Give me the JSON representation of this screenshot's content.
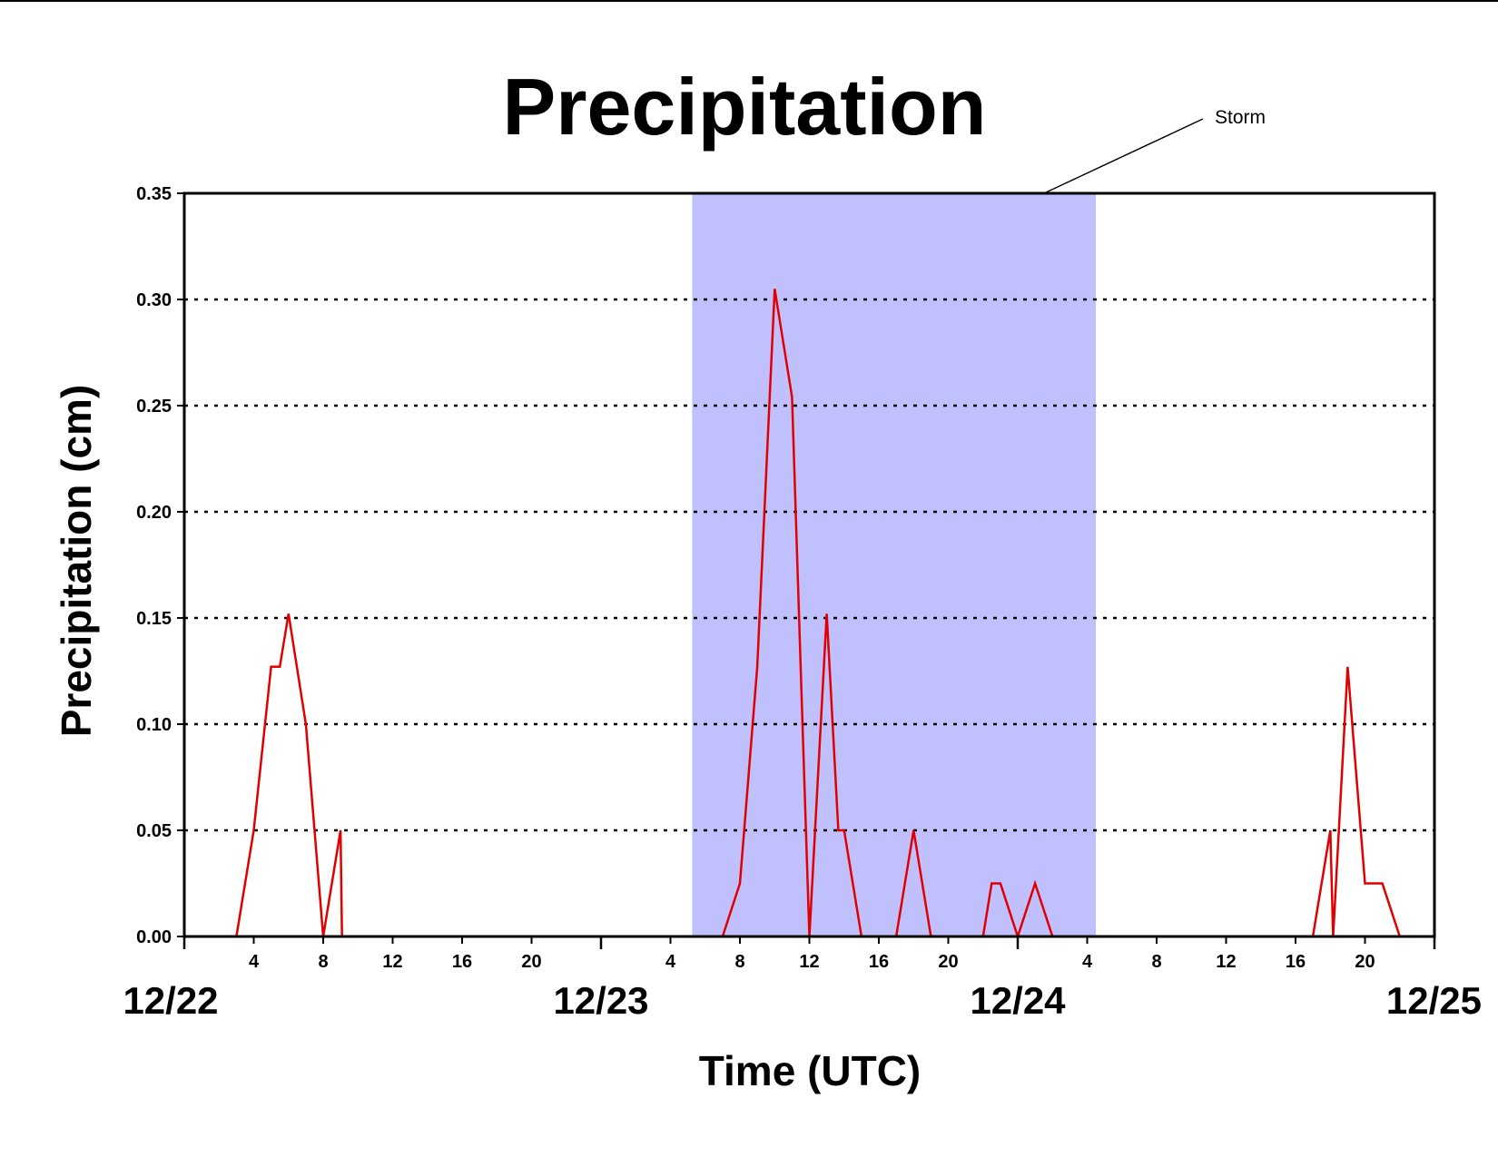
{
  "chart_data": {
    "type": "line",
    "title": "Precipitation",
    "xlabel": "Time (UTC)",
    "ylabel": "Precipitation (cm)",
    "x_unit": "hour",
    "xlim": [
      "12/22 00:00",
      "12/25 00:00"
    ],
    "ylim": [
      0,
      0.35
    ],
    "y_ticks": [
      "0.00",
      "0.05",
      "0.10",
      "0.15",
      "0.20",
      "0.25",
      "0.30",
      "0.35"
    ],
    "hour_tick_labels": [
      "4",
      "8",
      "12",
      "16",
      "20"
    ],
    "day_labels": [
      "12/22",
      "12/23",
      "12/24",
      "12/25"
    ],
    "grid": "horizontal dotted",
    "colors": {
      "line": "#e00000",
      "band": "#c0c0ff",
      "grid": "#000000",
      "axis": "#000000"
    },
    "annotation": {
      "text": "Storm",
      "band": [
        "12/23 05:15",
        "12/24 04:30"
      ]
    },
    "series": [
      {
        "points": [
          [
            "12/22 00:00",
            0
          ],
          [
            "12/22 03:00",
            0
          ],
          [
            "12/22 04:00",
            0.05
          ],
          [
            "12/22 05:00",
            0.127
          ],
          [
            "12/22 05:30",
            0.127
          ],
          [
            "12/22 06:00",
            0.152
          ],
          [
            "12/22 07:00",
            0.1
          ],
          [
            "12/22 08:00",
            0
          ],
          [
            "12/22 09:00",
            0.05
          ],
          [
            "12/22 09:05",
            0
          ],
          [
            "12/23 07:00",
            0
          ],
          [
            "12/23 08:00",
            0.025
          ],
          [
            "12/23 09:00",
            0.127
          ],
          [
            "12/23 10:00",
            0.305
          ],
          [
            "12/23 11:00",
            0.254
          ],
          [
            "12/23 11:30",
            0.127
          ],
          [
            "12/23 12:00",
            0
          ],
          [
            "12/23 13:00",
            0.152
          ],
          [
            "12/23 13:40",
            0.05
          ],
          [
            "12/23 14:00",
            0.05
          ],
          [
            "12/23 15:00",
            0
          ],
          [
            "12/23 17:00",
            0
          ],
          [
            "12/23 18:00",
            0.05
          ],
          [
            "12/23 19:00",
            0
          ],
          [
            "12/23 22:00",
            0
          ],
          [
            "12/23 22:30",
            0.025
          ],
          [
            "12/23 23:00",
            0.025
          ],
          [
            "12/24 00:00",
            0
          ],
          [
            "12/24 01:00",
            0.025
          ],
          [
            "12/24 02:00",
            0
          ],
          [
            "12/24 17:00",
            0
          ],
          [
            "12/24 18:00",
            0.05
          ],
          [
            "12/24 18:10",
            0
          ],
          [
            "12/24 19:00",
            0.127
          ],
          [
            "12/24 20:00",
            0.025
          ],
          [
            "12/24 21:00",
            0.025
          ],
          [
            "12/24 22:00",
            0
          ],
          [
            "12/25 00:00",
            0
          ]
        ]
      }
    ]
  }
}
